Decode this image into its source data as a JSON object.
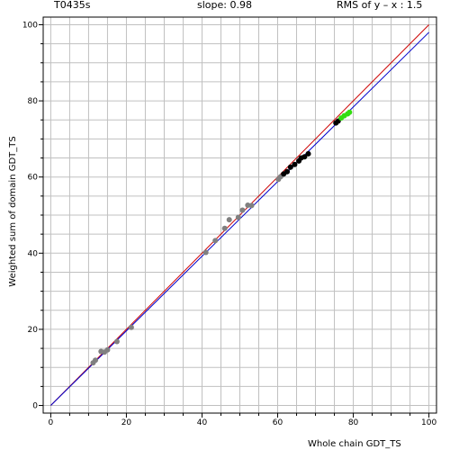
{
  "header": {
    "left": "T0435s",
    "center": "slope: 0.98",
    "right": "RMS of y – x : 1.5"
  },
  "chart_data": {
    "type": "scatter",
    "title": "",
    "xlabel": "Whole chain GDT_TS",
    "ylabel": "Weighted sum of domain GDT_TS",
    "xlim": [
      -2,
      102
    ],
    "ylim": [
      -2,
      102
    ],
    "x_ticks": [
      0,
      20,
      40,
      60,
      80,
      100
    ],
    "y_ticks": [
      0,
      20,
      40,
      60,
      80,
      100
    ],
    "grid": true,
    "colors": {
      "identity_line": "#cc0000",
      "fit_line": "#0000cc",
      "series_gray": "#808080",
      "series_black": "#000000",
      "series_green": "#33dd11",
      "grid": "#c0c0c0"
    },
    "lines": [
      {
        "kind": "identity",
        "x": [
          0,
          100
        ],
        "y": [
          0,
          100
        ]
      },
      {
        "kind": "fit",
        "x": [
          0,
          100
        ],
        "y": [
          0,
          98
        ]
      }
    ],
    "series": [
      {
        "color": "gray",
        "points": [
          [
            11.2,
            11.2
          ],
          [
            11.8,
            11.9
          ],
          [
            13.3,
            14.2
          ],
          [
            14.2,
            14.0
          ],
          [
            15.0,
            14.6
          ],
          [
            17.5,
            16.8
          ],
          [
            21.3,
            20.5
          ],
          [
            41.0,
            40.2
          ],
          [
            43.5,
            43.3
          ],
          [
            46.0,
            46.5
          ],
          [
            47.2,
            48.8
          ],
          [
            49.6,
            49.4
          ],
          [
            50.7,
            51.3
          ],
          [
            52.1,
            52.6
          ],
          [
            53.1,
            52.5
          ],
          [
            60.2,
            59.4
          ],
          [
            60.8,
            60.1
          ]
        ]
      },
      {
        "color": "black",
        "points": [
          [
            61.6,
            60.8
          ],
          [
            62.5,
            61.4
          ],
          [
            63.4,
            62.6
          ],
          [
            64.5,
            63.3
          ],
          [
            65.6,
            64.2
          ],
          [
            66.2,
            65.0
          ],
          [
            67.1,
            65.3
          ],
          [
            68.1,
            66.1
          ],
          [
            75.4,
            74.2
          ],
          [
            76.0,
            74.7
          ]
        ]
      },
      {
        "color": "green",
        "points": [
          [
            76.8,
            75.5
          ],
          [
            77.6,
            76.1
          ],
          [
            78.5,
            76.6
          ],
          [
            79.0,
            77.0
          ]
        ]
      }
    ]
  }
}
